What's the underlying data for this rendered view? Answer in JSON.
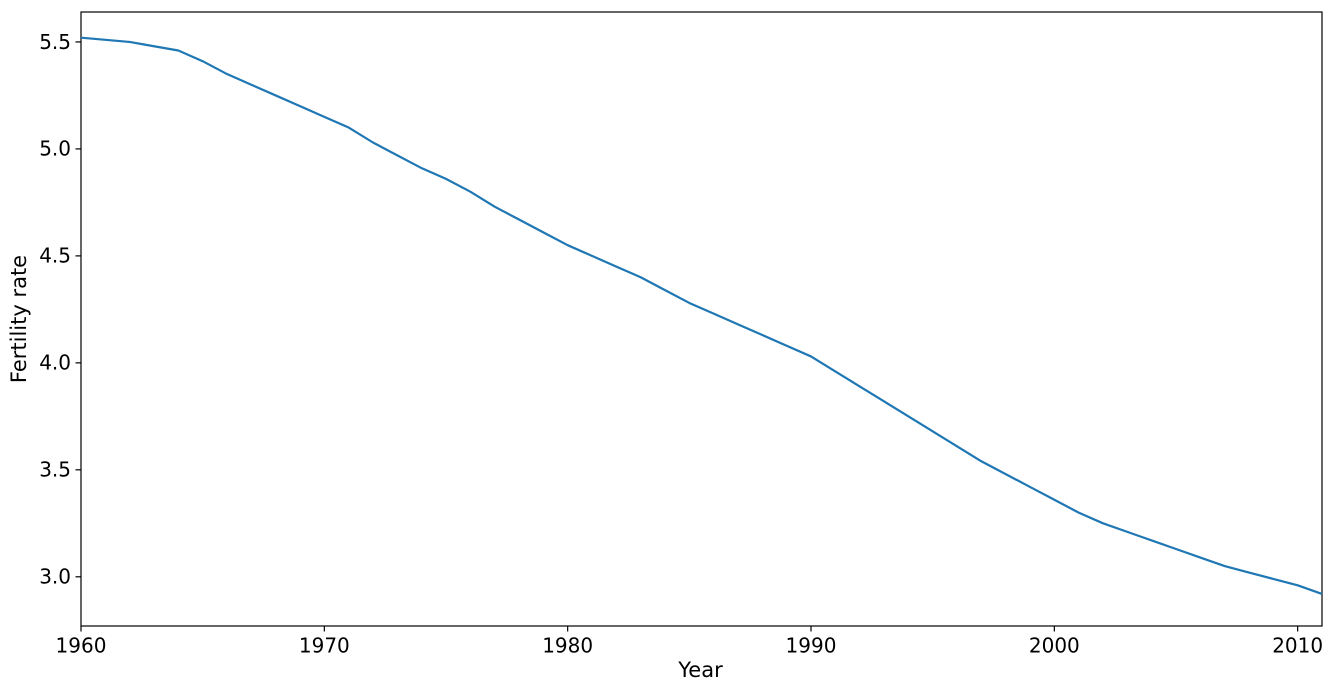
{
  "figure": {
    "background": "#ffffff",
    "spine_color": "#000000",
    "tick_color": "#000000"
  },
  "chart_data": {
    "type": "line",
    "title": "",
    "xlabel": "Year",
    "ylabel": "Fertility rate",
    "grid": false,
    "legend": "none",
    "xlim": [
      1960,
      2011
    ],
    "ylim": [
      2.77,
      5.64
    ],
    "xticks": [
      1960,
      1970,
      1980,
      1990,
      2000,
      2010
    ],
    "yticks": [
      3.0,
      3.5,
      4.0,
      4.5,
      5.0,
      5.5
    ],
    "x": [
      1960,
      1961,
      1962,
      1963,
      1964,
      1965,
      1966,
      1967,
      1968,
      1969,
      1970,
      1971,
      1972,
      1973,
      1974,
      1975,
      1976,
      1977,
      1978,
      1979,
      1980,
      1981,
      1982,
      1983,
      1984,
      1985,
      1986,
      1987,
      1988,
      1989,
      1990,
      1991,
      1992,
      1993,
      1994,
      1995,
      1996,
      1997,
      1998,
      1999,
      2000,
      2001,
      2002,
      2003,
      2004,
      2005,
      2006,
      2007,
      2008,
      2009,
      2010,
      2011
    ],
    "series": [
      {
        "name": "Fertility rate",
        "color": "#1f77b4",
        "line_width": 2.2,
        "values": [
          5.52,
          5.51,
          5.5,
          5.48,
          5.46,
          5.41,
          5.35,
          5.3,
          5.25,
          5.2,
          5.15,
          5.1,
          5.03,
          4.97,
          4.91,
          4.86,
          4.8,
          4.73,
          4.67,
          4.61,
          4.55,
          4.5,
          4.45,
          4.4,
          4.34,
          4.28,
          4.23,
          4.18,
          4.13,
          4.08,
          4.03,
          3.96,
          3.89,
          3.82,
          3.75,
          3.68,
          3.61,
          3.54,
          3.48,
          3.42,
          3.36,
          3.3,
          3.25,
          3.21,
          3.17,
          3.13,
          3.09,
          3.05,
          3.02,
          2.99,
          2.96,
          2.92
        ]
      }
    ]
  }
}
